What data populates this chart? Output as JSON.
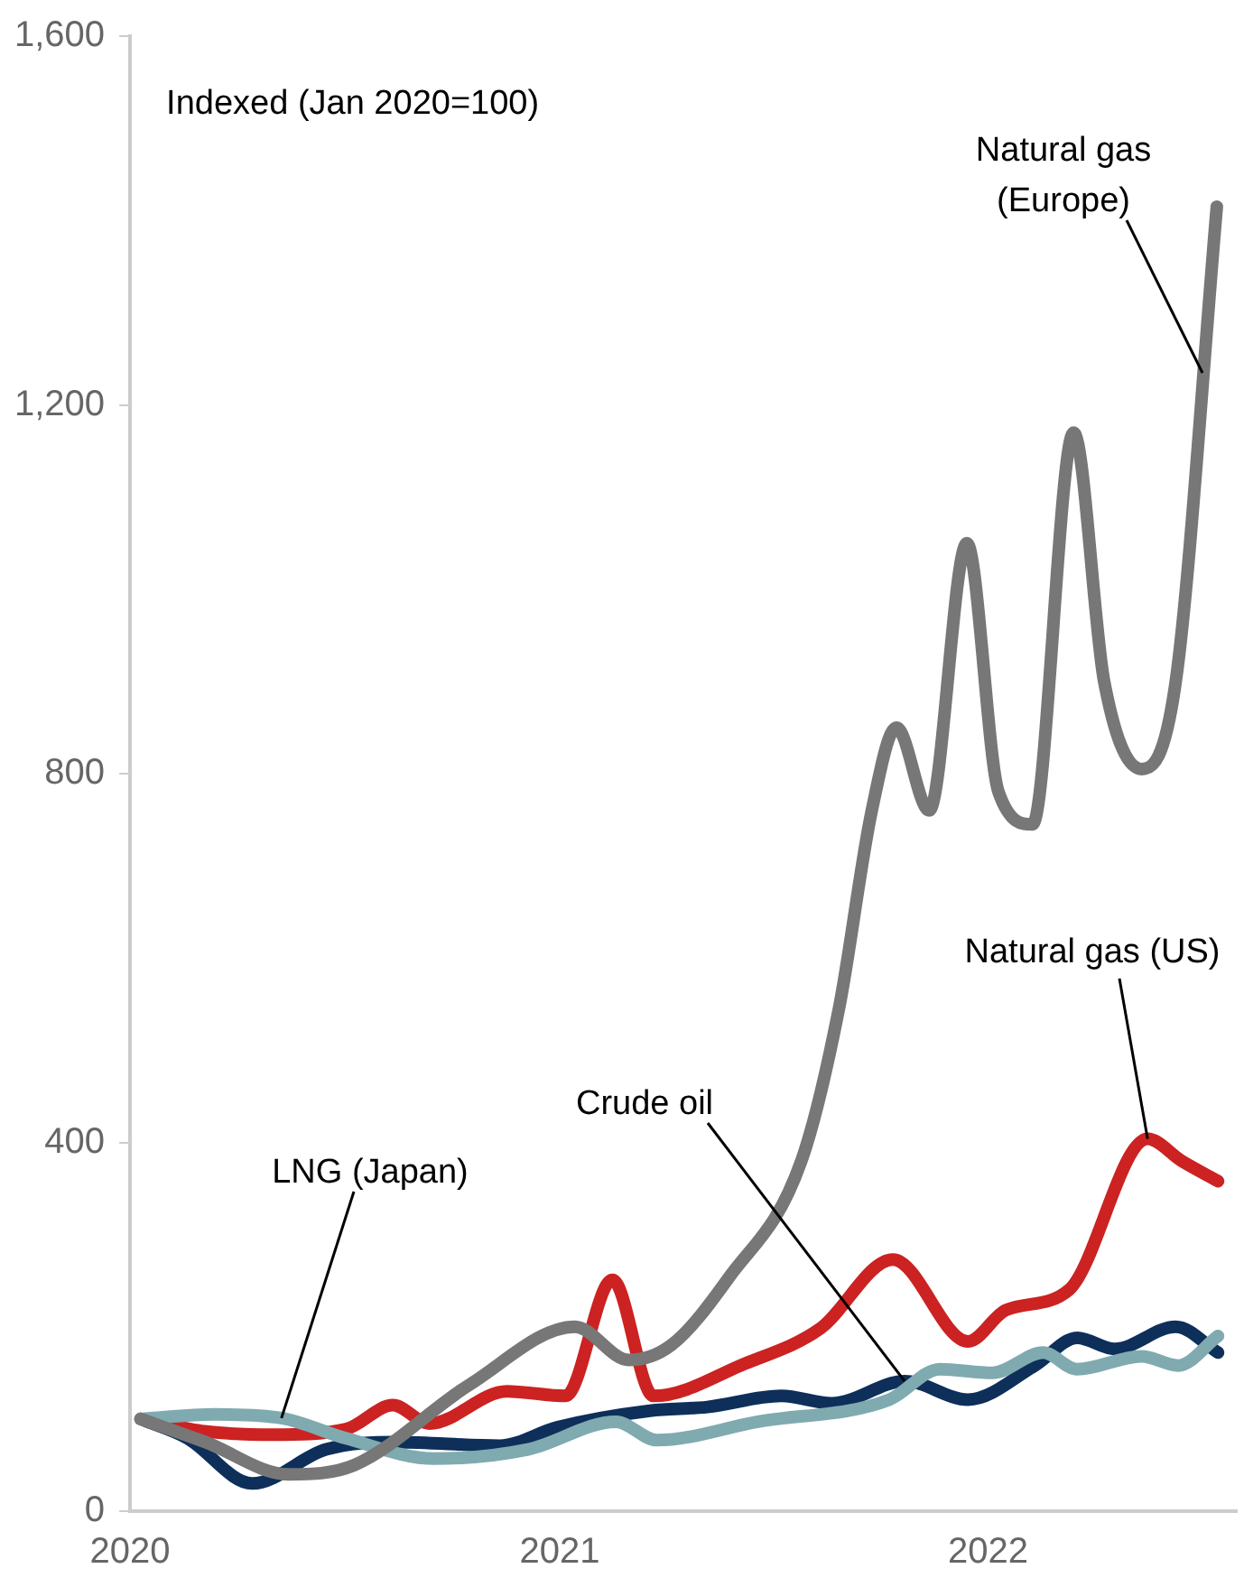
{
  "chart_data": {
    "type": "line",
    "annotations": [
      "Indexed (Jan 2020=100)"
    ],
    "xlim": [
      "2020",
      "2022-08"
    ],
    "xticks": [
      "2020",
      "2021",
      "2022"
    ],
    "ylim": [
      0,
      1600
    ],
    "yticks": [
      0,
      {
        "value": 400,
        "label": "400"
      },
      {
        "value": 800,
        "label": "800"
      },
      {
        "value": 1200,
        "label": "1,200"
      },
      {
        "value": 1600,
        "label": "1,600"
      }
    ],
    "grid": false,
    "legend": false,
    "marker": "none",
    "line_style": "solid",
    "series": [
      {
        "name": "Natural gas (Europe)",
        "color": "#777777",
        "x": [
          "2020-01-10",
          "2020-03-05",
          "2020-05-15",
          "2020-07-10",
          "2020-10-16",
          "2021-01-14",
          "2021-03-01",
          "2021-04-06",
          "2021-05-25",
          "2021-07-26",
          "2021-08-27",
          "2021-09-24",
          "2021-10-15",
          "2021-11-12",
          "2021-12-14",
          "2022-01-10",
          "2022-02-08",
          "2022-03-15",
          "2022-04-10",
          "2022-05-12",
          "2022-06-10",
          "2022-07-15"
        ],
        "values": [
          100,
          75,
          40,
          50,
          137,
          200,
          164,
          180,
          253,
          380,
          545,
          760,
          850,
          760,
          1050,
          780,
          745,
          1170,
          900,
          805,
          900,
          1415
        ]
      },
      {
        "name": "LNG (Japan)",
        "color": "#7faab0",
        "x": [
          "2020-01-10",
          "2020-03-13",
          "2020-05-09",
          "2020-07-03",
          "2020-09-16",
          "2020-12-05",
          "2021-02-18",
          "2021-03-25",
          "2021-06-19",
          "2021-10-09",
          "2021-11-21",
          "2022-01-05",
          "2022-02-17",
          "2022-03-18",
          "2022-05-12",
          "2022-06-12",
          "2022-07-16"
        ],
        "values": [
          100,
          105,
          101,
          79,
          57,
          67,
          97,
          77,
          97,
          121,
          154,
          150,
          172,
          154,
          168,
          158,
          190
        ]
      },
      {
        "name": "Natural gas (US)",
        "color": "#cc2222",
        "x": [
          "2020-01-10",
          "2020-03-02",
          "2020-05-02",
          "2020-07-03",
          "2020-08-12",
          "2020-09-12",
          "2020-11-17",
          "2021-01-06",
          "2021-02-15",
          "2021-03-22",
          "2021-06-08",
          "2021-08-11",
          "2021-10-12",
          "2021-12-15",
          "2022-01-16",
          "2022-03-11",
          "2022-05-17",
          "2022-06-15",
          "2022-07-16"
        ],
        "values": [
          100,
          87,
          83,
          89,
          115,
          95,
          130,
          125,
          251,
          125,
          160,
          198,
          273,
          184,
          218,
          240,
          404,
          380,
          358
        ]
      },
      {
        "name": "Crude oil",
        "color": "#0d2f5a",
        "x": [
          "2020-01-10",
          "2020-02-19",
          "2020-04-14",
          "2020-06-16",
          "2020-08-15",
          "2020-11-11",
          "2020-12-30",
          "2021-03-19",
          "2021-05-07",
          "2021-07-09",
          "2021-08-21",
          "2021-10-22",
          "2021-12-15",
          "2022-02-10",
          "2022-03-18",
          "2022-04-19",
          "2022-06-10",
          "2022-07-16"
        ],
        "values": [
          100,
          79,
          30,
          67,
          75,
          71,
          91,
          109,
          113,
          125,
          117,
          141,
          121,
          158,
          188,
          176,
          200,
          172
        ]
      }
    ]
  }
}
